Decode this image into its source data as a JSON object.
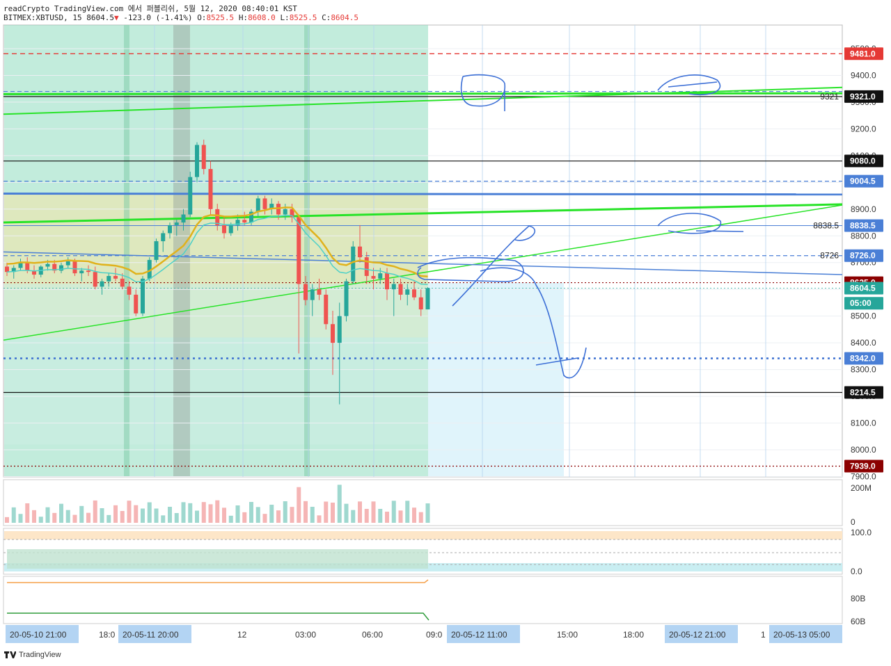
{
  "header": {
    "line1": "readCrypto TradingView.com 에서 퍼블리쉬, 5월 12, 2020 08:40:01 KST",
    "symbol": "BITMEX:XBTUSD, 15",
    "last": "8604.5",
    "change": "-123.0 (-1.41%)",
    "o_label": "O:",
    "o": "8525.5",
    "h_label": "H:",
    "h": "8608.0",
    "l_label": "L:",
    "l": "8525.5",
    "c_label": "C:",
    "c": "8604.5"
  },
  "footer": {
    "brand": "TradingView"
  },
  "colors": {
    "up": "#26a69a",
    "down": "#ef5350",
    "green_line": "#27e327",
    "blue_line": "#4a7fd6",
    "red_line": "#e53935",
    "ema": "#e0b21c",
    "teal": "#4dd0c8"
  },
  "chart_data": {
    "type": "candlestick",
    "y_axis": {
      "range": [
        7925,
        9560
      ],
      "ticks": [
        "9500.0",
        "9400.0",
        "9300.0",
        "9200.0",
        "9100.0",
        "9000.0",
        "8900.0",
        "8800.0",
        "8700.0",
        "8600.0",
        "8500.0",
        "8400.0",
        "8300.0",
        "8200.0",
        "8100.0",
        "8000.0",
        "7900.0"
      ]
    },
    "price_labels": [
      {
        "text": "9481.0",
        "value": 9481,
        "bg": "#e53935",
        "fg": "#ffffff"
      },
      {
        "text": "9321.0",
        "value": 9321,
        "bg": "#111111",
        "fg": "#ffffff"
      },
      {
        "text": "9080.0",
        "value": 9080,
        "bg": "#111111",
        "fg": "#ffffff"
      },
      {
        "text": "9004.5",
        "value": 9004.5,
        "bg": "#4a7fd6",
        "fg": "#ffffff"
      },
      {
        "text": "8838.5",
        "value": 8838.5,
        "bg": "#4a7fd6",
        "fg": "#ffffff"
      },
      {
        "text": "8726.0",
        "value": 8726,
        "bg": "#4a7fd6",
        "fg": "#ffffff"
      },
      {
        "text": "8625.0",
        "value": 8625,
        "bg": "#8b0000",
        "fg": "#ffffff"
      },
      {
        "text": "8604.5",
        "value": 8604.5,
        "bg": "#26a69a",
        "fg": "#ffffff"
      },
      {
        "text": "05:00",
        "value": 8548,
        "bg": "#26a69a",
        "fg": "#ffffff"
      },
      {
        "text": "8342.0",
        "value": 8342,
        "bg": "#4a7fd6",
        "fg": "#ffffff"
      },
      {
        "text": "8214.5",
        "value": 8214.5,
        "bg": "#111111",
        "fg": "#ffffff"
      },
      {
        "text": "7939.0",
        "value": 7939,
        "bg": "#8b0000",
        "fg": "#ffffff"
      }
    ],
    "text_annotations": [
      {
        "text": "9321",
        "value": 9321
      },
      {
        "text": "8838.5",
        "value": 8838.5
      },
      {
        "text": "8726",
        "value": 8726
      }
    ],
    "x_axis": {
      "labels": [
        {
          "text": "20-05-10   21:00",
          "highlight": true
        },
        {
          "text": "18:0",
          "highlight": false
        },
        {
          "text": "20-05-11   20:00",
          "highlight": true
        },
        {
          "text": "12",
          "highlight": false
        },
        {
          "text": "03:00",
          "highlight": false
        },
        {
          "text": "06:00",
          "highlight": false
        },
        {
          "text": "09:0",
          "highlight": false
        },
        {
          "text": "20-05-12   11:00",
          "highlight": true
        },
        {
          "text": "15:00",
          "highlight": false
        },
        {
          "text": "18:00",
          "highlight": false
        },
        {
          "text": "20-05-12   21:00",
          "highlight": true
        },
        {
          "text": "1",
          "highlight": false
        },
        {
          "text": "20-05-13   05:00",
          "highlight": true
        }
      ]
    },
    "candles": [
      [
        8685,
        8700,
        8650,
        8665
      ],
      [
        8665,
        8690,
        8640,
        8680
      ],
      [
        8680,
        8715,
        8670,
        8700
      ],
      [
        8700,
        8720,
        8660,
        8670
      ],
      [
        8670,
        8690,
        8640,
        8655
      ],
      [
        8655,
        8690,
        8645,
        8685
      ],
      [
        8685,
        8710,
        8670,
        8695
      ],
      [
        8695,
        8710,
        8660,
        8670
      ],
      [
        8670,
        8700,
        8660,
        8690
      ],
      [
        8690,
        8720,
        8680,
        8705
      ],
      [
        8705,
        8715,
        8650,
        8660
      ],
      [
        8660,
        8680,
        8630,
        8670
      ],
      [
        8670,
        8690,
        8650,
        8665
      ],
      [
        8665,
        8685,
        8600,
        8610
      ],
      [
        8610,
        8640,
        8580,
        8630
      ],
      [
        8630,
        8660,
        8610,
        8650
      ],
      [
        8650,
        8680,
        8630,
        8640
      ],
      [
        8640,
        8660,
        8600,
        8610
      ],
      [
        8610,
        8630,
        8560,
        8580
      ],
      [
        8580,
        8600,
        8500,
        8510
      ],
      [
        8510,
        8650,
        8500,
        8640
      ],
      [
        8640,
        8720,
        8630,
        8710
      ],
      [
        8710,
        8790,
        8700,
        8780
      ],
      [
        8780,
        8820,
        8740,
        8810
      ],
      [
        8810,
        8850,
        8790,
        8840
      ],
      [
        8840,
        8860,
        8800,
        8850
      ],
      [
        8850,
        8900,
        8820,
        8880
      ],
      [
        8880,
        9040,
        8870,
        9020
      ],
      [
        9020,
        9150,
        9000,
        9140
      ],
      [
        9140,
        9160,
        9030,
        9050
      ],
      [
        9050,
        9080,
        8880,
        8900
      ],
      [
        8900,
        8920,
        8820,
        8840
      ],
      [
        8840,
        8870,
        8790,
        8810
      ],
      [
        8810,
        8850,
        8800,
        8840
      ],
      [
        8840,
        8880,
        8820,
        8860
      ],
      [
        8860,
        8890,
        8840,
        8850
      ],
      [
        8850,
        8900,
        8840,
        8890
      ],
      [
        8890,
        8950,
        8870,
        8940
      ],
      [
        8940,
        8950,
        8880,
        8900
      ],
      [
        8900,
        8940,
        8880,
        8920
      ],
      [
        8920,
        8930,
        8860,
        8880
      ],
      [
        8880,
        8920,
        8860,
        8900
      ],
      [
        8900,
        8920,
        8850,
        8870
      ],
      [
        8870,
        8880,
        8360,
        8620
      ],
      [
        8620,
        8650,
        8540,
        8560
      ],
      [
        8560,
        8620,
        8500,
        8600
      ],
      [
        8600,
        8640,
        8560,
        8580
      ],
      [
        8580,
        8600,
        8450,
        8470
      ],
      [
        8470,
        8520,
        8280,
        8400
      ],
      [
        8400,
        8550,
        8170,
        8500
      ],
      [
        8500,
        8640,
        8480,
        8630
      ],
      [
        8630,
        8780,
        8620,
        8760
      ],
      [
        8760,
        8840,
        8700,
        8720
      ],
      [
        8720,
        8740,
        8620,
        8650
      ],
      [
        8650,
        8680,
        8600,
        8640
      ],
      [
        8640,
        8680,
        8620,
        8660
      ],
      [
        8660,
        8680,
        8560,
        8600
      ],
      [
        8600,
        8640,
        8500,
        8620
      ],
      [
        8620,
        8640,
        8560,
        8580
      ],
      [
        8580,
        8620,
        8540,
        8600
      ],
      [
        8600,
        8630,
        8560,
        8570
      ],
      [
        8570,
        8600,
        8500,
        8525
      ],
      [
        8525,
        8608,
        8525,
        8604.5
      ]
    ],
    "volume_axis": {
      "ticks": [
        "200M",
        "0"
      ]
    },
    "osc1_axis": {
      "ticks": [
        "100.0",
        "0.0"
      ]
    },
    "osc2_axis": {
      "ticks": [
        "80B",
        "60B"
      ]
    }
  }
}
